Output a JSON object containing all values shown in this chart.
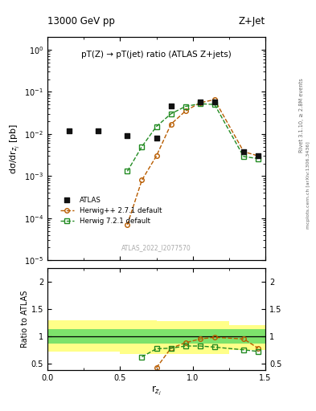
{
  "title_top": "13000 GeV pp",
  "title_right": "Z+Jet",
  "plot_title": "pT(Z) → pT(jet) ratio (ATLAS Z+jets)",
  "ylabel_main": "dσ/dr$_{z_j}$ [pb]",
  "ylabel_ratio": "Ratio to ATLAS",
  "xlabel": "r$_{z_j}$",
  "right_label_top": "Rivet 3.1.10, ≥ 2.8M events",
  "right_label_bot": "mcplots.cern.ch [arXiv:1306.3436]",
  "watermark": "ATLAS_2022_I2077570",
  "atlas_color": "#111111",
  "herwig_pp_color": "#b85c00",
  "herwig7_color": "#228b22",
  "ylim_main": [
    1e-05,
    2.0
  ],
  "xlim": [
    0.0,
    1.5
  ],
  "atlas_data_x": [
    0.15,
    0.35,
    0.55,
    0.75,
    0.85,
    1.05,
    1.15,
    1.35,
    1.45
  ],
  "atlas_data_y": [
    0.012,
    0.012,
    0.009,
    0.008,
    0.047,
    0.058,
    0.058,
    0.0037,
    0.003
  ],
  "herwig_pp_x": [
    0.55,
    0.65,
    0.75,
    0.85,
    0.95,
    1.05,
    1.15,
    1.35,
    1.45
  ],
  "herwig_pp_y": [
    7e-05,
    0.0008,
    0.003,
    0.017,
    0.035,
    0.055,
    0.065,
    0.0038,
    0.003
  ],
  "herwig7_x": [
    0.55,
    0.65,
    0.75,
    0.85,
    0.95,
    1.05,
    1.15,
    1.35,
    1.45
  ],
  "herwig7_y": [
    0.0013,
    0.005,
    0.015,
    0.03,
    0.045,
    0.052,
    0.05,
    0.0029,
    0.0026
  ],
  "herwig_pp_ratio_x": [
    0.75,
    0.85,
    0.95,
    1.05,
    1.15,
    1.35,
    1.45
  ],
  "herwig_pp_ratio_y": [
    0.42,
    0.78,
    0.88,
    0.95,
    0.98,
    0.95,
    0.78
  ],
  "herwig7_ratio_x": [
    0.65,
    0.75,
    0.85,
    0.95,
    1.05,
    1.15,
    1.35,
    1.45
  ],
  "herwig7_ratio_y": [
    0.62,
    0.77,
    0.78,
    0.82,
    0.82,
    0.8,
    0.75,
    0.72
  ],
  "band_edges": [
    0.0,
    0.5,
    0.75,
    1.25,
    1.5
  ],
  "band_inner_lo": [
    0.87,
    0.87,
    0.87,
    0.87,
    0.87
  ],
  "band_inner_hi": [
    1.13,
    1.13,
    1.13,
    1.13,
    1.13
  ],
  "band_outer_lo": [
    0.72,
    0.68,
    0.68,
    0.75,
    0.75
  ],
  "band_outer_hi": [
    1.3,
    1.3,
    1.28,
    1.2,
    1.2
  ],
  "ratio_yticks": [
    0.5,
    1.0,
    1.5,
    2.0
  ],
  "ratio_ylim": [
    0.38,
    2.25
  ]
}
